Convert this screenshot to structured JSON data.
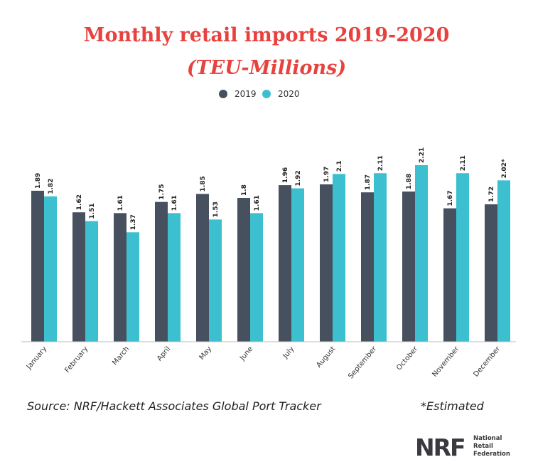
{
  "chart_data": {
    "type": "bar",
    "title": "Monthly retail imports 2019-2020",
    "subtitle": "(TEU-Millions)",
    "categories": [
      "January",
      "February",
      "March",
      "April",
      "May",
      "June",
      "July",
      "August",
      "September",
      "October",
      "November",
      "December"
    ],
    "series": [
      {
        "name": "2019",
        "color": "#46505f",
        "values": [
          1.89,
          1.62,
          1.61,
          1.75,
          1.85,
          1.8,
          1.96,
          1.97,
          1.87,
          1.88,
          1.67,
          1.72
        ],
        "labels": [
          "1.89",
          "1.62",
          "1.61",
          "1.75",
          "1.85",
          "1.8",
          "1.96",
          "1.97",
          "1.87",
          "1.88",
          "1.67",
          "1.72"
        ]
      },
      {
        "name": "2020",
        "color": "#3cc0cf",
        "values": [
          1.82,
          1.51,
          1.37,
          1.61,
          1.53,
          1.61,
          1.92,
          2.1,
          2.11,
          2.21,
          2.11,
          2.02
        ],
        "labels": [
          "1.82",
          "1.51",
          "1.37",
          "1.61",
          "1.53",
          "1.61",
          "1.92",
          "2.1",
          "2.11",
          "2.21",
          "2.11",
          "2.02*"
        ]
      }
    ],
    "ylim": [
      0,
      2.5
    ],
    "grid": false,
    "legend": "top-center"
  },
  "footer": {
    "source": "Source: NRF/Hackett Associates Global Port Tracker",
    "note": "*Estimated"
  },
  "logo": {
    "mark": "NRF",
    "line1": "National",
    "line2": "Retail",
    "line3": "Federation"
  }
}
